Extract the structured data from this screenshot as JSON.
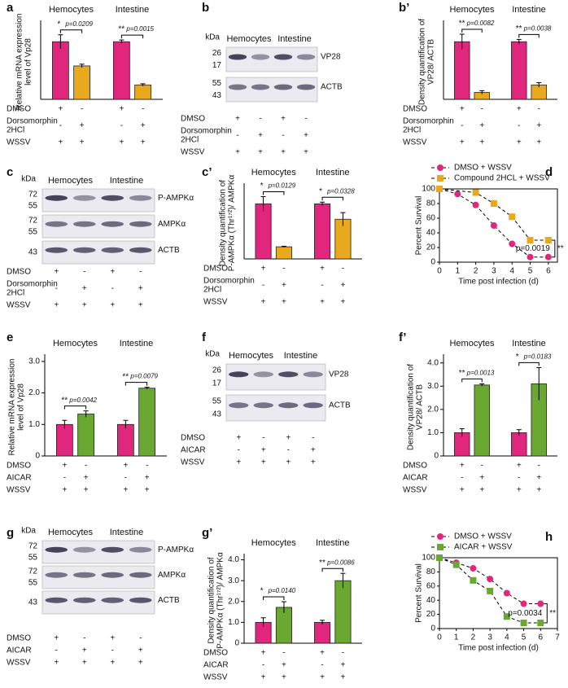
{
  "chart_data": [
    {
      "type": "bar",
      "panel": "a",
      "groups": [
        "Hemocytes",
        "Intestine"
      ],
      "ylabel": [
        "Relative mRNA expression",
        "level of Vp28"
      ],
      "values": [
        1.0,
        0.58,
        1.0,
        0.25
      ],
      "errors": [
        0.12,
        0.03,
        0.03,
        0.02
      ],
      "colors": [
        "#e0267d",
        "#e8a91e",
        "#e0267d",
        "#e8a91e"
      ],
      "ylim": [
        0,
        1.3
      ],
      "sig": [
        {
          "stars": "*",
          "p": "p=0.0209"
        },
        {
          "stars": "**",
          "p": "p=0.0015"
        }
      ],
      "treatments": [
        {
          "label": [
            "DMSO"
          ],
          "signs": [
            "+",
            "-",
            "+",
            "-"
          ]
        },
        {
          "label": [
            "Dorsomorphin",
            "2HCl"
          ],
          "signs": [
            "-",
            "+",
            "-",
            "+"
          ]
        },
        {
          "label": [
            "WSSV"
          ],
          "signs": [
            "+",
            "+",
            "+",
            "+"
          ]
        }
      ]
    },
    {
      "type": "bar",
      "panel": "b’",
      "groups": [
        "Hemocytes",
        "Intestine"
      ],
      "ylabel": [
        "Density quantification of",
        "VP28/ ACTB"
      ],
      "values": [
        1.0,
        0.12,
        1.0,
        0.25
      ],
      "errors": [
        0.13,
        0.03,
        0.04,
        0.04
      ],
      "colors": [
        "#e0267d",
        "#e8a91e",
        "#e0267d",
        "#e8a91e"
      ],
      "ylim": [
        0,
        1.3
      ],
      "sig": [
        {
          "stars": "**",
          "p": "p=0.0082"
        },
        {
          "stars": "**",
          "p": "p=0.0038"
        }
      ],
      "treatments": [
        {
          "label": [
            "DMSO"
          ],
          "signs": [
            "+",
            "-",
            "+",
            "-"
          ]
        },
        {
          "label": [
            "Dorsomorphin",
            "2HCl"
          ],
          "signs": [
            "-",
            "+",
            "-",
            "+"
          ]
        },
        {
          "label": [
            "WSSV"
          ],
          "signs": [
            "+",
            "+",
            "+",
            "+"
          ]
        }
      ]
    },
    {
      "type": "bar",
      "panel": "c’",
      "groups": [
        "Hemocytes",
        "Intestine"
      ],
      "ylabel": [
        "Density quantification of",
        "P-AMPKα (Thr¹⁷²)/ AMPKα"
      ],
      "values": [
        1.0,
        0.22,
        1.0,
        0.72
      ],
      "errors": [
        0.13,
        0.01,
        0.03,
        0.12
      ],
      "colors": [
        "#e0267d",
        "#e8a91e",
        "#e0267d",
        "#e8a91e"
      ],
      "ylim": [
        0,
        1.3
      ],
      "sig": [
        {
          "stars": "*",
          "p": "p=0.0129"
        },
        {
          "stars": "*",
          "p": "p=0.0328"
        }
      ],
      "treatments": [
        {
          "label": [
            "DMSO"
          ],
          "signs": [
            "+",
            "-",
            "+",
            "-"
          ]
        },
        {
          "label": [
            "Dorsomorphin",
            "2HCl"
          ],
          "signs": [
            "-",
            "+",
            "-",
            "+"
          ]
        },
        {
          "label": [
            "WSSV"
          ],
          "signs": [
            "+",
            "+",
            "+",
            "+"
          ]
        }
      ]
    },
    {
      "type": "line",
      "panel": "d",
      "ylabel": "Percent Survival",
      "xlabel": "Time post infection (d)",
      "legend": "upper left",
      "xlim": [
        0,
        6.5
      ],
      "xticks": [
        0,
        1,
        2,
        3,
        4,
        5,
        6
      ],
      "ylim": [
        0,
        100
      ],
      "yticks": [
        0,
        20,
        40,
        60,
        80,
        100
      ],
      "series": [
        {
          "name": "DMSO + WSSV",
          "color": "#e0267d",
          "marker": "circle",
          "x": [
            0,
            1,
            2,
            3,
            4,
            5,
            6
          ],
          "values": [
            100,
            93,
            78,
            50,
            25,
            7,
            7
          ]
        },
        {
          "name": "Compound 2HCL + WSSV",
          "color": "#e8a91e",
          "marker": "square",
          "x": [
            0,
            2,
            3,
            4,
            5,
            6
          ],
          "values": [
            100,
            95,
            80,
            62,
            30,
            30
          ]
        }
      ],
      "annotation": {
        "p": "p=0.0019",
        "stars": "**"
      }
    },
    {
      "type": "bar",
      "panel": "e",
      "groups": [
        "Hemocytes",
        "Intestine"
      ],
      "ylabel": [
        "Relative mRNA expression",
        "level of Vp28"
      ],
      "values": [
        1.0,
        1.33,
        1.0,
        2.15
      ],
      "errors": [
        0.13,
        0.1,
        0.13,
        0.03
      ],
      "colors": [
        "#e0267d",
        "#6aa832",
        "#e0267d",
        "#6aa832"
      ],
      "ylim": [
        0,
        3.1
      ],
      "yticks": [
        0,
        {
          "value": 1,
          "label": "1.0"
        },
        {
          "value": 2,
          "label": "2.0"
        },
        {
          "value": 3,
          "label": "3.0"
        }
      ],
      "sig": [
        {
          "stars": "**",
          "p": "p=0.0042"
        },
        {
          "stars": "**",
          "p": "p=0.0079"
        }
      ],
      "treatments": [
        {
          "label": [
            "DMSO"
          ],
          "signs": [
            "+",
            "-",
            "+",
            "-"
          ]
        },
        {
          "label": [
            "AICAR"
          ],
          "signs": [
            "-",
            "+",
            "-",
            "+"
          ]
        },
        {
          "label": [
            "WSSV"
          ],
          "signs": [
            "+",
            "+",
            "+",
            "+"
          ]
        }
      ]
    },
    {
      "type": "bar",
      "panel": "f’",
      "groups": [
        "Hemocytes",
        "Intestine"
      ],
      "ylabel": [
        "Density quantification of",
        "VP28/ ACTB"
      ],
      "values": [
        1.0,
        3.05,
        1.0,
        3.1
      ],
      "errors": [
        0.17,
        0.05,
        0.13,
        0.7
      ],
      "colors": [
        "#e0267d",
        "#6aa832",
        "#e0267d",
        "#6aa832"
      ],
      "ylim": [
        0,
        4.2
      ],
      "yticks": [
        0,
        {
          "value": 1,
          "label": "1.0"
        },
        {
          "value": 2,
          "label": "2.0"
        },
        {
          "value": 3,
          "label": "3.0"
        },
        {
          "value": 4,
          "label": "4.0"
        }
      ],
      "sig": [
        {
          "stars": "**",
          "p": "p=0.0013"
        },
        {
          "stars": "*",
          "p": "p=0.0183"
        }
      ],
      "treatments": [
        {
          "label": [
            "DMSO"
          ],
          "signs": [
            "+",
            "-",
            "+",
            "-"
          ]
        },
        {
          "label": [
            "AICAR"
          ],
          "signs": [
            "-",
            "+",
            "-",
            "+"
          ]
        },
        {
          "label": [
            "WSSV"
          ],
          "signs": [
            "+",
            "+",
            "+",
            "+"
          ]
        }
      ]
    },
    {
      "type": "bar",
      "panel": "g’",
      "groups": [
        "Hemocytes",
        "Intestine"
      ],
      "ylabel": [
        "Density quantification of",
        "P-AMPKα (Thr¹⁷²)/ AMPKα"
      ],
      "values": [
        1.0,
        1.72,
        1.0,
        3.0
      ],
      "errors": [
        0.22,
        0.27,
        0.1,
        0.35
      ],
      "colors": [
        "#e0267d",
        "#6aa832",
        "#e0267d",
        "#6aa832"
      ],
      "ylim": [
        0,
        4.1
      ],
      "yticks": [
        0,
        {
          "value": 1,
          "label": "1.0"
        },
        {
          "value": 2,
          "label": "2.0"
        },
        {
          "value": 3,
          "label": "3.0"
        },
        {
          "value": 4,
          "label": "4.0"
        }
      ],
      "sig": [
        {
          "stars": "*",
          "p": "p=0.0140"
        },
        {
          "stars": "**",
          "p": "p=0.0086"
        }
      ],
      "treatments": [
        {
          "label": [
            "DMSO"
          ],
          "signs": [
            "+",
            "-",
            "+",
            "-"
          ]
        },
        {
          "label": [
            "AICAR"
          ],
          "signs": [
            "-",
            "+",
            "-",
            "+"
          ]
        },
        {
          "label": [
            "WSSV"
          ],
          "signs": [
            "+",
            "+",
            "+",
            "+"
          ]
        }
      ]
    },
    {
      "type": "line",
      "panel": "h",
      "ylabel": "Percent Survival",
      "xlabel": "Time post infection (d)",
      "legend": "upper left",
      "xlim": [
        0,
        7
      ],
      "xticks": [
        0,
        1,
        2,
        3,
        4,
        5,
        6,
        7
      ],
      "ylim": [
        0,
        100
      ],
      "yticks": [
        0,
        20,
        40,
        60,
        80,
        100
      ],
      "series": [
        {
          "name": "DMSO + WSSV",
          "color": "#e0267d",
          "marker": "circle",
          "x": [
            0,
            1,
            2,
            3,
            4,
            5,
            6
          ],
          "values": [
            100,
            93,
            85,
            70,
            50,
            35,
            35
          ]
        },
        {
          "name": "AICAR + WSSV",
          "color": "#6aa832",
          "marker": "square",
          "x": [
            0,
            1,
            2,
            3,
            4,
            5,
            6
          ],
          "values": [
            100,
            90,
            68,
            53,
            17,
            8,
            8
          ]
        }
      ],
      "annotation": {
        "p": "p=0.0034",
        "stars": "**"
      }
    }
  ],
  "blots": [
    {
      "panel": "b",
      "kda": "kDa",
      "groups": [
        "Hemocytes",
        "Intestine"
      ],
      "strips": [
        {
          "markers": [
            26,
            17
          ],
          "label": "VP28"
        },
        {
          "markers": [
            55,
            43
          ],
          "label": "ACTB"
        }
      ],
      "treatments": [
        {
          "label": [
            "DMSO"
          ],
          "signs": [
            "+",
            "-",
            "+",
            "-"
          ]
        },
        {
          "label": [
            "Dorsomorphin",
            "2HCl"
          ],
          "signs": [
            "-",
            "+",
            "-",
            "+"
          ]
        },
        {
          "label": [
            "WSSV"
          ],
          "signs": [
            "+",
            "+",
            "+",
            "+"
          ]
        }
      ]
    },
    {
      "panel": "c",
      "kda": "kDa",
      "groups": [
        "Hemocytes",
        "Intestine"
      ],
      "strips": [
        {
          "markers": [
            72,
            55
          ],
          "label": "P-AMPKα"
        },
        {
          "markers": [
            72,
            55
          ],
          "label": "AMPKα"
        },
        {
          "markers": [
            43
          ],
          "label": "ACTB"
        }
      ],
      "treatments": [
        {
          "label": [
            "DMSO"
          ],
          "signs": [
            "+",
            "-",
            "+",
            "-"
          ]
        },
        {
          "label": [
            "Dorsomorphin",
            "2HCl"
          ],
          "signs": [
            "-",
            "+",
            "-",
            "+"
          ]
        },
        {
          "label": [
            "WSSV"
          ],
          "signs": [
            "+",
            "+",
            "+",
            "+"
          ]
        }
      ]
    },
    {
      "panel": "f",
      "kda": "kDa",
      "groups": [
        "Hemocytes",
        "Intestine"
      ],
      "strips": [
        {
          "markers": [
            26,
            17
          ],
          "label": "VP28"
        },
        {
          "markers": [
            55,
            43
          ],
          "label": "ACTB"
        }
      ],
      "treatments": [
        {
          "label": [
            "DMSO"
          ],
          "signs": [
            "+",
            "-",
            "+",
            "-"
          ]
        },
        {
          "label": [
            "AICAR"
          ],
          "signs": [
            "-",
            "+",
            "-",
            "+"
          ]
        },
        {
          "label": [
            "WSSV"
          ],
          "signs": [
            "+",
            "+",
            "+",
            "+"
          ]
        }
      ]
    },
    {
      "panel": "g",
      "kda": "kDa",
      "groups": [
        "Hemocytes",
        "Intestine"
      ],
      "strips": [
        {
          "markers": [
            72,
            55
          ],
          "label": "P-AMPKα"
        },
        {
          "markers": [
            72,
            55
          ],
          "label": "AMPKα"
        },
        {
          "markers": [
            43
          ],
          "label": "ACTB"
        }
      ],
      "treatments": [
        {
          "label": [
            "DMSO"
          ],
          "signs": [
            "+",
            "-",
            "+",
            "-"
          ]
        },
        {
          "label": [
            "AICAR"
          ],
          "signs": [
            "-",
            "+",
            "-",
            "+"
          ]
        },
        {
          "label": [
            "WSSV"
          ],
          "signs": [
            "+",
            "+",
            "+",
            "+"
          ]
        }
      ]
    }
  ]
}
